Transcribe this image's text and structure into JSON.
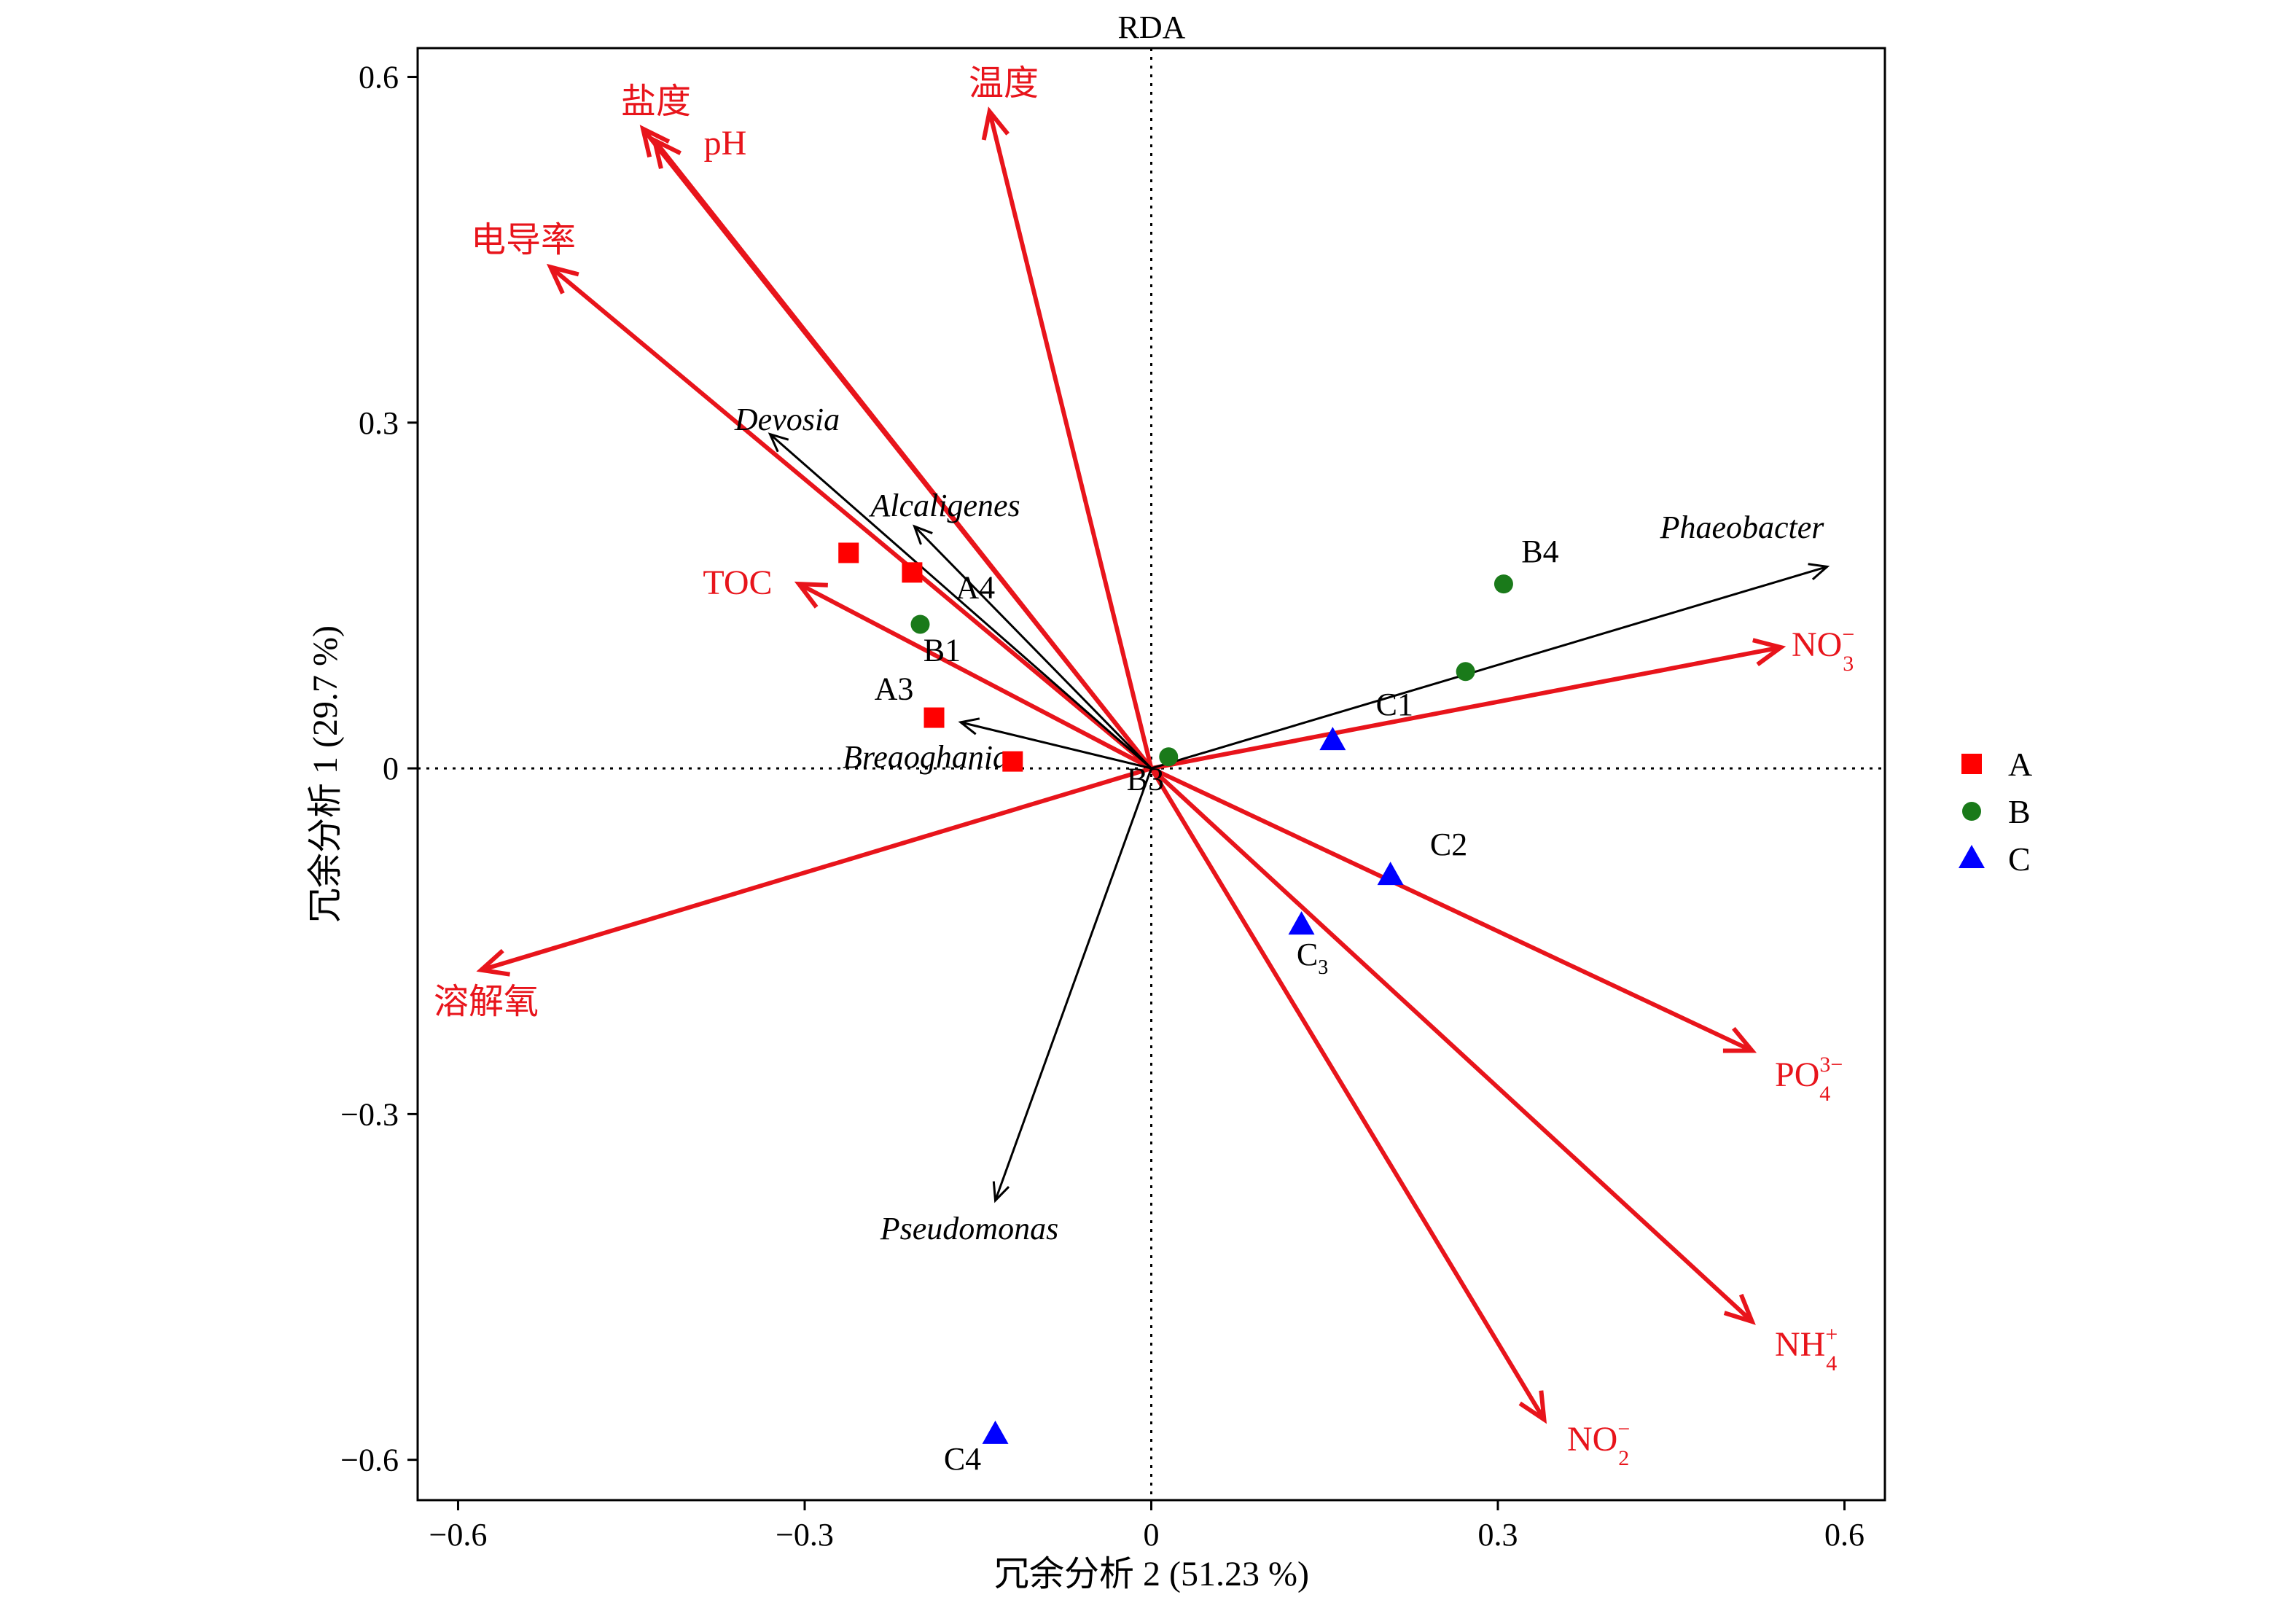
{
  "chart_data": {
    "type": "scatter",
    "subtype": "rda-biplot",
    "title": "RDA",
    "xlabel": "冗余分析 2 (51.23 %)",
    "ylabel": "冗余分析 1 (29.7 %)",
    "xlim": [
      -0.635,
      0.635
    ],
    "ylim": [
      -0.635,
      0.625
    ],
    "xticks": [
      -0.6,
      -0.3,
      0,
      0.3,
      0.6
    ],
    "xtick_labels": [
      "−0.6",
      "−0.3",
      "0",
      "0.3",
      "0.6"
    ],
    "yticks": [
      0.6,
      0.3,
      0,
      -0.3,
      -0.6
    ],
    "ytick_labels": [
      "0.6",
      "0.3",
      "0",
      "−0.3",
      "−0.6"
    ],
    "grid": false,
    "zero_lines": "dotted",
    "legend_position": "right",
    "legend": [
      {
        "label": "A",
        "marker": "square",
        "color": "#ff0000"
      },
      {
        "label": "B",
        "marker": "circle",
        "color": "#1a7a1a"
      },
      {
        "label": "C",
        "marker": "triangle",
        "color": "#0000ff"
      }
    ],
    "env_vectors": [
      {
        "name": "盐度",
        "x": -0.44,
        "y": 0.555
      },
      {
        "name": "pH",
        "x": -0.43,
        "y": 0.545
      },
      {
        "name": "温度",
        "x": -0.14,
        "y": 0.57
      },
      {
        "name": "电导率",
        "x": -0.52,
        "y": 0.435
      },
      {
        "name": "TOC",
        "x": -0.305,
        "y": 0.16
      },
      {
        "name": "溶解氧",
        "x": -0.58,
        "y": -0.175
      },
      {
        "name": "NO",
        "sub": "3",
        "sup": "−",
        "x": 0.545,
        "y": 0.105
      },
      {
        "name": "PO",
        "sub": "4",
        "sup": "3−",
        "x": 0.52,
        "y": -0.245
      },
      {
        "name": "NH",
        "sub": "4",
        "sup": "+",
        "x": 0.52,
        "y": -0.48
      },
      {
        "name": "NO",
        "sub": "2",
        "sup": "−",
        "x": 0.34,
        "y": -0.565
      }
    ],
    "species_vectors": [
      {
        "name": "Devosia",
        "x": -0.33,
        "y": 0.29
      },
      {
        "name": "Alcaligenes",
        "x": -0.205,
        "y": 0.21
      },
      {
        "name": "Phaeobacter",
        "x": 0.585,
        "y": 0.175
      },
      {
        "name": "Breaoghania",
        "x": -0.165,
        "y": 0.04
      },
      {
        "name": "Pseudomonas",
        "x": -0.135,
        "y": -0.375
      }
    ],
    "samples": [
      {
        "group": "A",
        "label": "",
        "x": -0.262,
        "y": 0.187
      },
      {
        "group": "A",
        "label": "A4",
        "x": -0.207,
        "y": 0.17
      },
      {
        "group": "A",
        "label": "A3",
        "x": -0.188,
        "y": 0.044
      },
      {
        "group": "A",
        "label": "",
        "x": -0.12,
        "y": 0.006
      },
      {
        "group": "B",
        "label": "B1",
        "x": -0.2,
        "y": 0.125
      },
      {
        "group": "B",
        "label": "B4",
        "x": 0.305,
        "y": 0.16
      },
      {
        "group": "B",
        "label": "",
        "x": 0.272,
        "y": 0.084
      },
      {
        "group": "B",
        "label": "B3",
        "x": 0.015,
        "y": 0.01
      },
      {
        "group": "C",
        "label": "C1",
        "x": 0.157,
        "y": 0.024
      },
      {
        "group": "C",
        "label": "C2",
        "x": 0.207,
        "y": -0.093
      },
      {
        "group": "C",
        "label": "C",
        "label_sub": "3",
        "x": 0.13,
        "y": -0.136
      },
      {
        "group": "C",
        "label": "C4",
        "x": -0.135,
        "y": -0.578
      }
    ]
  },
  "colors": {
    "env": "#e8141b",
    "species": "#000000",
    "A": "#ff0000",
    "B": "#1a7a1a",
    "C": "#0000ff"
  }
}
